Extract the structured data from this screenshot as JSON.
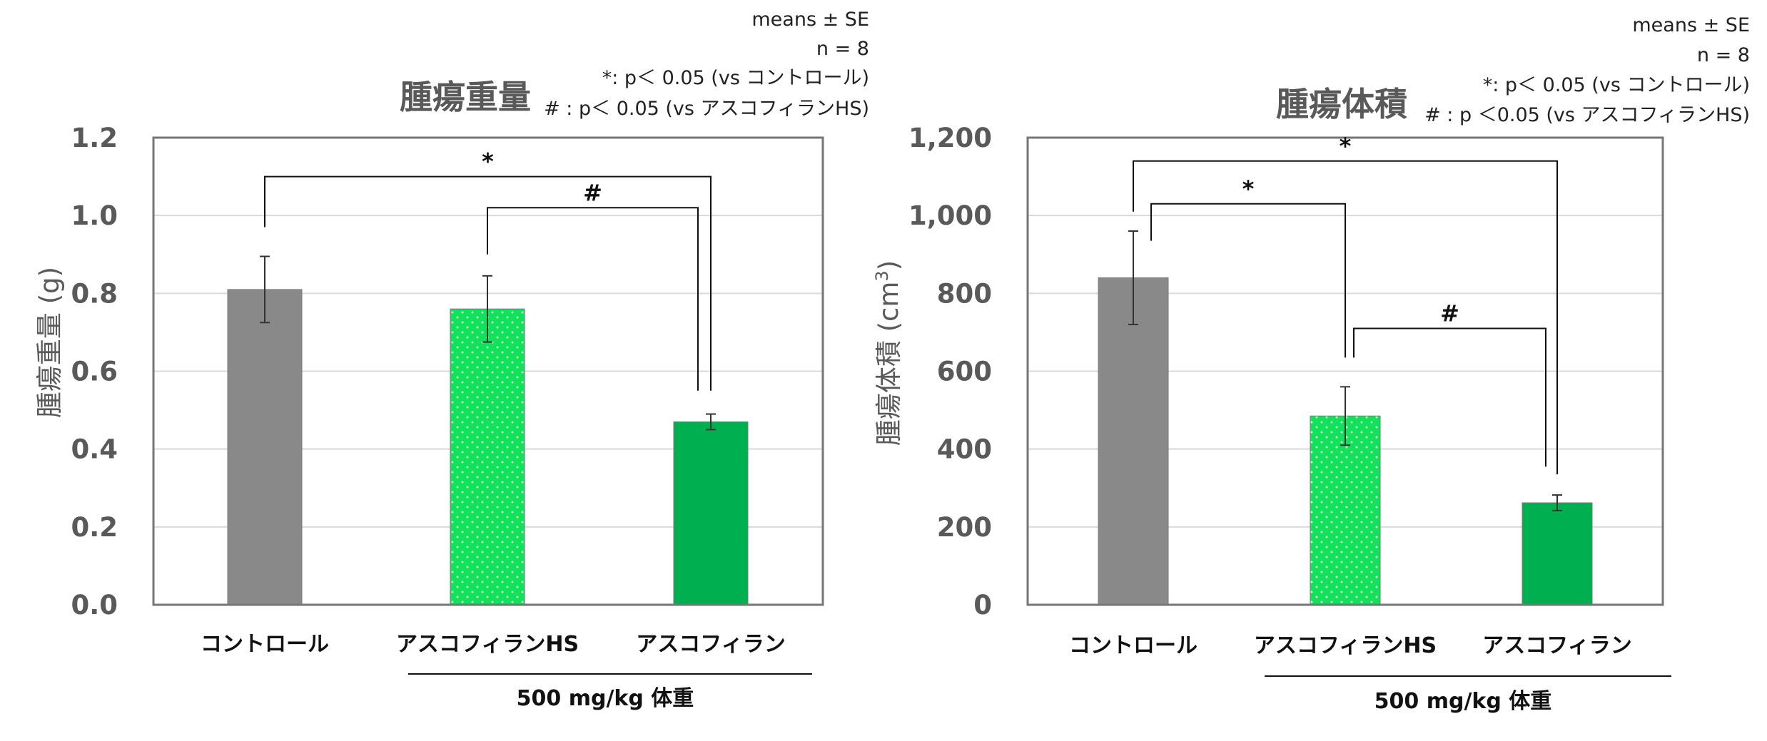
{
  "chart_data": [
    {
      "type": "bar",
      "title": "腫瘍重量",
      "ylabel": "腫瘍重量 (g)",
      "ylim": [
        0,
        1.2
      ],
      "yticks": [
        "0.0",
        "0.2",
        "0.4",
        "0.6",
        "0.8",
        "1.0",
        "1.2"
      ],
      "categories": [
        "コントロール",
        "アスコフィランHS",
        "アスコフィラン"
      ],
      "values": [
        0.81,
        0.76,
        0.47
      ],
      "errors": [
        0.085,
        0.085,
        0.02
      ],
      "colors": [
        "#898989",
        "#12e25a",
        "#00b050"
      ],
      "patterns": [
        "solid",
        "dotted",
        "solid"
      ],
      "group_label": "500 mg/kg 体重",
      "notes": [
        "means ± SE",
        "n = 8",
        "*: p＜ 0.05 (vs コントロール)",
        "# : p＜ 0.05 (vs アスコフィランHS)"
      ],
      "significance": [
        {
          "from": 0,
          "to": 2,
          "symbol": "*"
        },
        {
          "from": 1,
          "to": 2,
          "symbol": "#"
        }
      ],
      "grid": true
    },
    {
      "type": "bar",
      "title": "腫瘍体積",
      "ylabel": "腫瘍体積 (cm3)",
      "ylabel_main": "腫瘍体積 (cm",
      "ylabel_sup": "3",
      "ylabel_close": ")",
      "ylim": [
        0,
        1200
      ],
      "yticks": [
        "0",
        "200",
        "400",
        "600",
        "800",
        "1,000",
        "1,200"
      ],
      "categories": [
        "コントロール",
        "アスコフィランHS",
        "アスコフィラン"
      ],
      "values": [
        840,
        485,
        262
      ],
      "errors": [
        120,
        75,
        20
      ],
      "colors": [
        "#898989",
        "#12e25a",
        "#00b050"
      ],
      "patterns": [
        "solid",
        "dotted",
        "solid"
      ],
      "group_label": "500 mg/kg 体重",
      "notes": [
        "means ± SE",
        "n = 8",
        "*: p＜ 0.05 (vs コントロール)",
        "# : p ＜0.05 (vs アスコフィランHS)"
      ],
      "significance": [
        {
          "from": 0,
          "to": 2,
          "symbol": "*"
        },
        {
          "from": 0,
          "to": 1,
          "symbol": "*"
        },
        {
          "from": 1,
          "to": 2,
          "symbol": "#"
        }
      ],
      "grid": true
    }
  ]
}
